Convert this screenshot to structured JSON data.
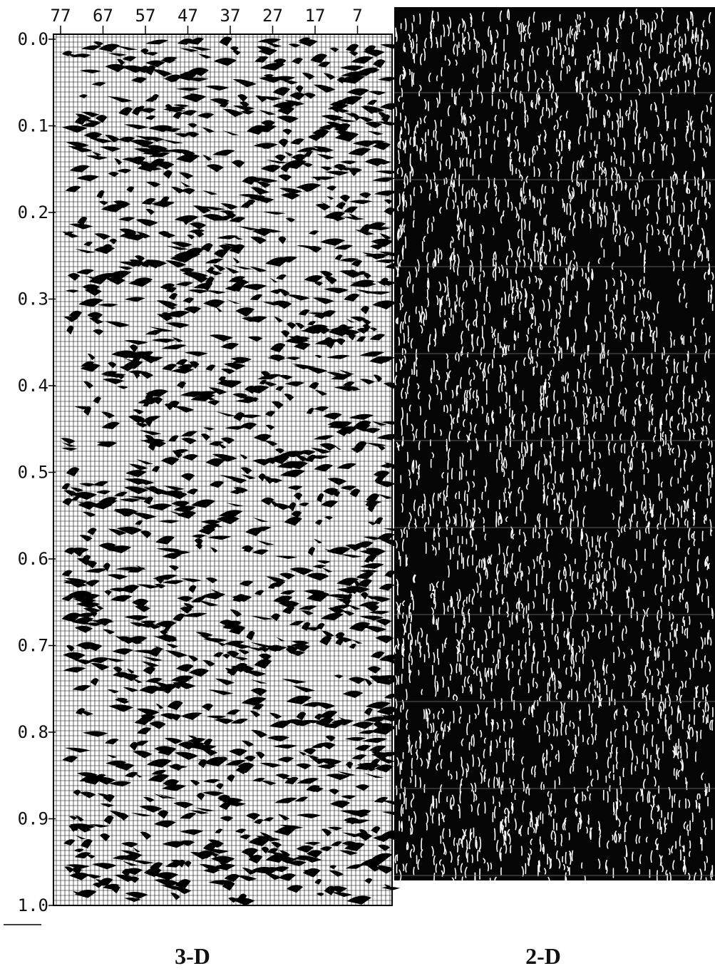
{
  "panels": [
    {
      "label": "3-D",
      "top_ticks": [
        "77",
        "67",
        "57",
        "47",
        "37",
        "27",
        "17",
        "7"
      ],
      "left_ticks": [
        "0.0",
        "0.1",
        "0.2",
        "0.3",
        "0.4",
        "0.5",
        "0.6",
        "0.7",
        "0.8",
        "0.9",
        "1.0"
      ]
    },
    {
      "label": "2-D"
    }
  ]
}
